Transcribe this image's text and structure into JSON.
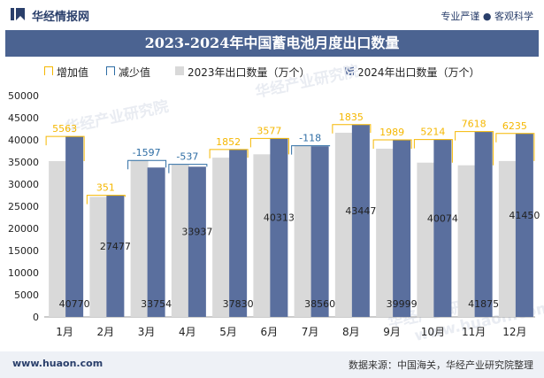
{
  "header": {
    "logo_text": "华经情报网",
    "tagline": "专业严谨 ● 客观科学"
  },
  "title": "2023-2024年中国蓄电池月度出口数量",
  "legend": [
    {
      "key": "increase",
      "label": "增加值",
      "color": "#f5b700"
    },
    {
      "key": "decrease",
      "label": "减少值",
      "color": "#2e6da4"
    },
    {
      "key": "y2023",
      "label": "2023年出口数量（万个）",
      "color": "#d9d9d9"
    },
    {
      "key": "y2024",
      "label": "2024年出口数量（万个）",
      "color": "#5a6f9e"
    }
  ],
  "footer": {
    "left": "www.huaon.com",
    "right": "数据来源：中国海关，华经产业研究院整理"
  },
  "watermarks": [
    "华经产业研究院",
    "华经产业研究院",
    "华经产业研究院",
    "www.huaon.com"
  ],
  "chart_data": {
    "type": "bar",
    "categories": [
      "1月",
      "2月",
      "3月",
      "4月",
      "5月",
      "6月",
      "7月",
      "8月",
      "9月",
      "10月",
      "11月",
      "12月"
    ],
    "series": [
      {
        "name": "2023年出口数量（万个）",
        "values": [
          35207,
          27126,
          35351,
          34474,
          35978,
          36736,
          38678,
          41612,
          38010,
          34860,
          34257,
          35215
        ]
      },
      {
        "name": "2024年出口数量（万个）",
        "values": [
          40770,
          27477,
          33754,
          33937,
          37830,
          40313,
          38560,
          43447,
          39999,
          40074,
          41875,
          41450
        ]
      }
    ],
    "changes": [
      5563,
      351,
      -1597,
      -537,
      1852,
      3577,
      -118,
      1835,
      1989,
      5214,
      7618,
      6235
    ],
    "ylim": [
      0,
      50000
    ],
    "yticks": [
      0,
      5000,
      10000,
      15000,
      20000,
      25000,
      30000,
      35000,
      40000,
      45000,
      50000
    ],
    "colors": {
      "y2023": "#d9d9d9",
      "y2024": "#5a6f9e",
      "increase": "#f5b700",
      "decrease": "#2e6da4"
    }
  }
}
